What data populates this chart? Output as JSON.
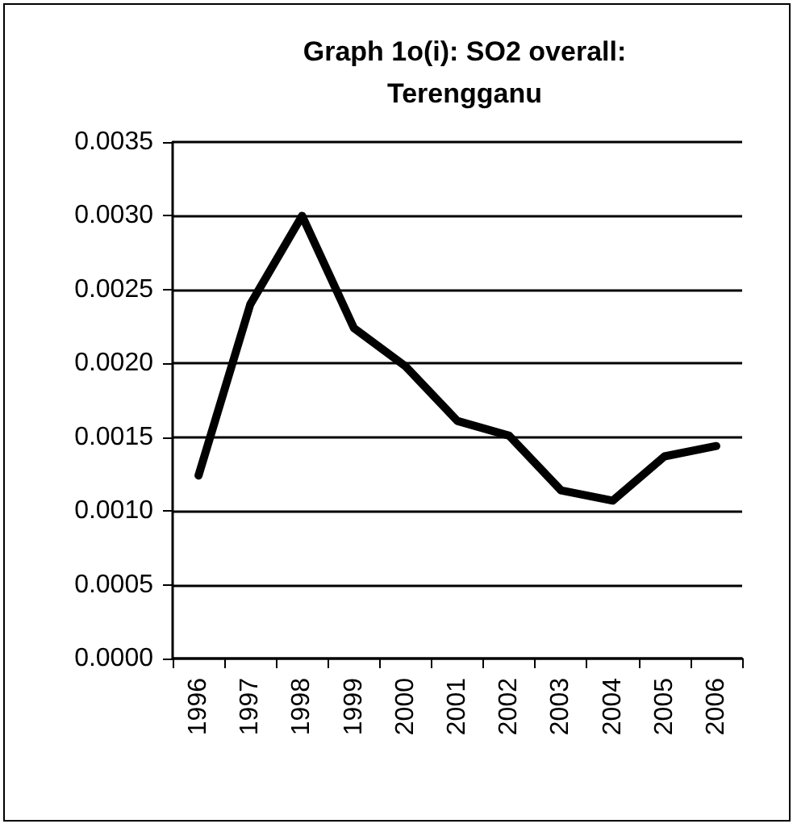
{
  "chart_data": {
    "type": "line",
    "title": "Graph 1o(i): SO2 overall:\nTerengganu",
    "categories": [
      "1996",
      "1997",
      "1998",
      "1999",
      "2000",
      "2001",
      "2002",
      "2003",
      "2004",
      "2005",
      "2006"
    ],
    "series": [
      {
        "color": "#000000",
        "values": [
          0.00124,
          0.0024,
          0.003,
          0.00224,
          0.00198,
          0.00161,
          0.00151,
          0.00114,
          0.00107,
          0.00137,
          0.00144
        ]
      }
    ],
    "ylim": [
      0,
      0.0035
    ],
    "yticks": [
      {
        "value": 0,
        "label": "0.0000"
      },
      {
        "value": 0.0005,
        "label": "0.0005"
      },
      {
        "value": 0.001,
        "label": "0.0010"
      },
      {
        "value": 0.0015,
        "label": "0.0015"
      },
      {
        "value": 0.002,
        "label": "0.0020"
      },
      {
        "value": 0.0025,
        "label": "0.0025"
      },
      {
        "value": 0.003,
        "label": "0.0030"
      },
      {
        "value": 0.0035,
        "label": "0.0035"
      }
    ],
    "grid": "y",
    "marker": "none",
    "line_style": "solid"
  }
}
